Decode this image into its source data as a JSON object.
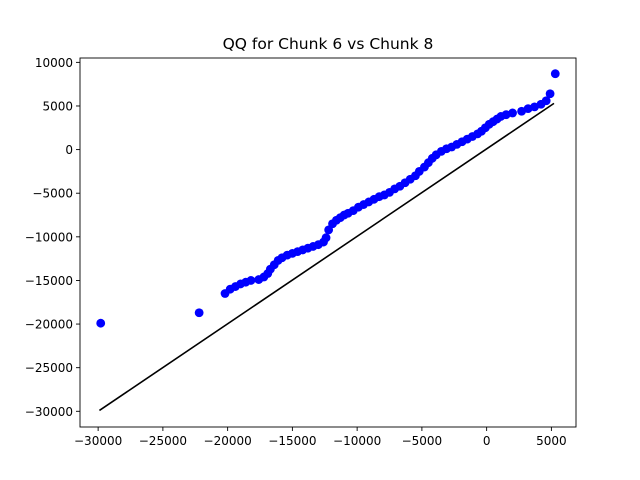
{
  "chart_data": {
    "type": "scatter",
    "title": "QQ for Chunk 6 vs Chunk 8",
    "xlabel": "",
    "ylabel": "",
    "xlim": [
      -31400,
      6900
    ],
    "ylim": [
      -31800,
      10500
    ],
    "xticks": [
      -30000,
      -25000,
      -20000,
      -15000,
      -10000,
      -5000,
      0,
      5000
    ],
    "xtick_labels": [
      "−30000",
      "−25000",
      "−20000",
      "−15000",
      "−10000",
      "−5000",
      "0",
      "5000"
    ],
    "yticks": [
      -30000,
      -25000,
      -20000,
      -15000,
      -10000,
      -5000,
      0,
      5000,
      10000
    ],
    "ytick_labels": [
      "−30000",
      "−25000",
      "−20000",
      "−15000",
      "−10000",
      "−5000",
      "0",
      "5000",
      "10000"
    ],
    "grid": false,
    "legend": "none",
    "marker_color": "#0000ff",
    "line_color": "#000000",
    "reference_line": {
      "x": [
        -29900,
        5200
      ],
      "y": [
        -29900,
        5300
      ]
    },
    "points": [
      [
        -29800,
        -19900
      ],
      [
        -22200,
        -18700
      ],
      [
        -20200,
        -16500
      ],
      [
        -19800,
        -16000
      ],
      [
        -19400,
        -15700
      ],
      [
        -19000,
        -15400
      ],
      [
        -18600,
        -15200
      ],
      [
        -18200,
        -15000
      ],
      [
        -17600,
        -14900
      ],
      [
        -17200,
        -14600
      ],
      [
        -16900,
        -14200
      ],
      [
        -16700,
        -13700
      ],
      [
        -16400,
        -13200
      ],
      [
        -16100,
        -12700
      ],
      [
        -15800,
        -12400
      ],
      [
        -15400,
        -12100
      ],
      [
        -15000,
        -11900
      ],
      [
        -14600,
        -11700
      ],
      [
        -14200,
        -11500
      ],
      [
        -13800,
        -11300
      ],
      [
        -13400,
        -11100
      ],
      [
        -13000,
        -10900
      ],
      [
        -12600,
        -10600
      ],
      [
        -12400,
        -10100
      ],
      [
        -12200,
        -9200
      ],
      [
        -11900,
        -8500
      ],
      [
        -11600,
        -8100
      ],
      [
        -11300,
        -7800
      ],
      [
        -11000,
        -7500
      ],
      [
        -10700,
        -7300
      ],
      [
        -10300,
        -7000
      ],
      [
        -9900,
        -6600
      ],
      [
        -9500,
        -6300
      ],
      [
        -9100,
        -6000
      ],
      [
        -8700,
        -5700
      ],
      [
        -8300,
        -5400
      ],
      [
        -7900,
        -5200
      ],
      [
        -7500,
        -4900
      ],
      [
        -7100,
        -4500
      ],
      [
        -6700,
        -4200
      ],
      [
        -6300,
        -3800
      ],
      [
        -5900,
        -3400
      ],
      [
        -5500,
        -3000
      ],
      [
        -5200,
        -2500
      ],
      [
        -4800,
        -2000
      ],
      [
        -4500,
        -1500
      ],
      [
        -4200,
        -1000
      ],
      [
        -3900,
        -600
      ],
      [
        -3500,
        -200
      ],
      [
        -3100,
        100
      ],
      [
        -2700,
        300
      ],
      [
        -2300,
        600
      ],
      [
        -1900,
        900
      ],
      [
        -1500,
        1200
      ],
      [
        -1100,
        1500
      ],
      [
        -700,
        1800
      ],
      [
        -400,
        2100
      ],
      [
        -100,
        2500
      ],
      [
        200,
        2900
      ],
      [
        500,
        3200
      ],
      [
        800,
        3500
      ],
      [
        1100,
        3800
      ],
      [
        1500,
        4000
      ],
      [
        2000,
        4200
      ],
      [
        2700,
        4400
      ],
      [
        3200,
        4700
      ],
      [
        3700,
        4900
      ],
      [
        4200,
        5200
      ],
      [
        4600,
        5600
      ],
      [
        4900,
        6400
      ],
      [
        5300,
        8700
      ]
    ]
  }
}
